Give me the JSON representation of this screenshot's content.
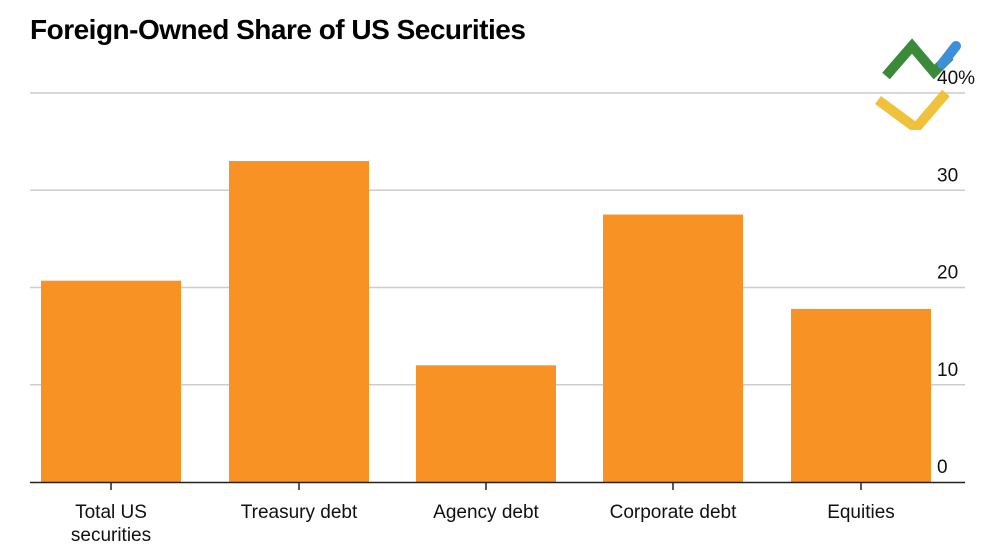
{
  "title": "Foreign-Owned Share of US Securities",
  "colors": {
    "bar": "#F89224",
    "grid": "#cccccc",
    "axis": "#222222"
  },
  "logo": {
    "name": "brand-logo",
    "colors": [
      "#3A8A3A",
      "#3C8FD8",
      "#F0C23C"
    ]
  },
  "chart_data": {
    "type": "bar",
    "title": "Foreign-Owned Share of US Securities",
    "categories": [
      "Total US\nsecurities",
      "Treasury debt",
      "Agency debt",
      "Corporate debt",
      "Equities"
    ],
    "values": [
      20.7,
      33.0,
      12.0,
      27.5,
      17.8
    ],
    "unit": "%",
    "ylim": [
      0,
      40
    ],
    "yticks": [
      0,
      10,
      20,
      30,
      40
    ],
    "ytick_labels": [
      "0",
      "10",
      "20",
      "30",
      "40%"
    ],
    "xlabel": "",
    "ylabel": "",
    "grid": true,
    "yaxis_position": "right"
  }
}
